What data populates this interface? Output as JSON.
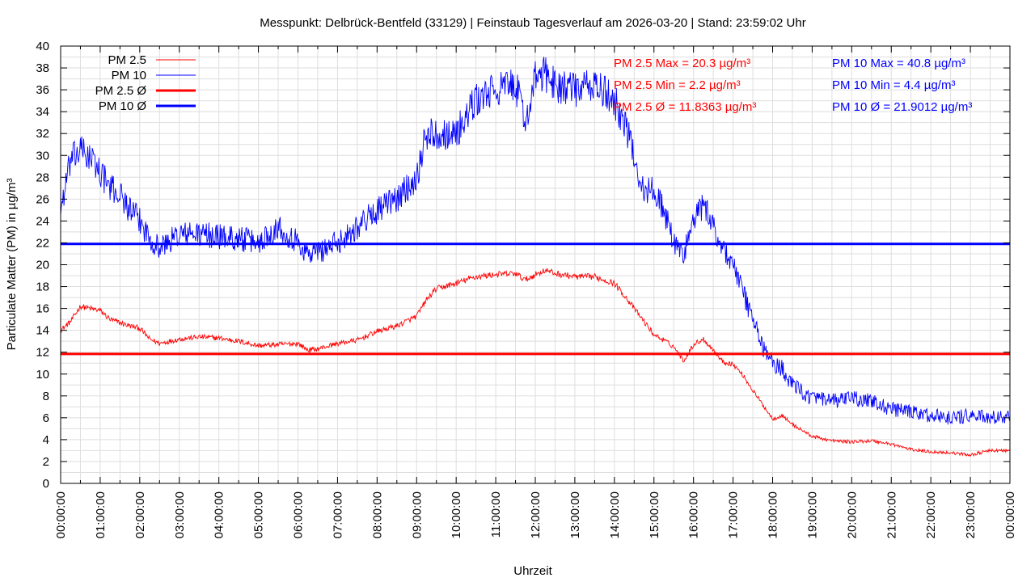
{
  "colors": {
    "pm25": "#ff0000",
    "pm10": "#0000ff",
    "grid": "#dedede",
    "axis": "#000000"
  },
  "chart_data": {
    "type": "line",
    "title": "Messpunkt: Delbrück-Bentfeld (33129) | Feinstaub Tagesverlauf am 2026-03-20 | Stand: 23:59:02 Uhr",
    "xlabel": "Uhrzeit",
    "ylabel": "Particulate Matter (PM) in µg/m³",
    "ylim": [
      0,
      40
    ],
    "xlim_hours": [
      0,
      24
    ],
    "y_ticks": [
      "0",
      "2",
      "4",
      "6",
      "8",
      "10",
      "12",
      "14",
      "16",
      "18",
      "20",
      "22",
      "24",
      "26",
      "28",
      "30",
      "32",
      "34",
      "36",
      "38",
      "40"
    ],
    "x_ticks": [
      "00:00:00",
      "01:00:00",
      "02:00:00",
      "03:00:00",
      "04:00:00",
      "05:00:00",
      "06:00:00",
      "07:00:00",
      "08:00:00",
      "09:00:00",
      "10:00:00",
      "11:00:00",
      "12:00:00",
      "13:00:00",
      "14:00:00",
      "15:00:00",
      "16:00:00",
      "17:00:00",
      "18:00:00",
      "19:00:00",
      "20:00:00",
      "21:00:00",
      "22:00:00",
      "23:00:00",
      "00:00:00"
    ],
    "grid": true,
    "legend_position": "top-left",
    "legend": [
      {
        "label": "PM 2.5",
        "series": "pm25",
        "style": "thin"
      },
      {
        "label": "PM 10",
        "series": "pm10",
        "style": "thin"
      },
      {
        "label": "PM 2.5 Ø",
        "series": "pm25",
        "style": "thick"
      },
      {
        "label": "PM 10 Ø",
        "series": "pm10",
        "style": "thick"
      }
    ],
    "series": [
      {
        "name": "PM 2.5",
        "color": "#ff0000",
        "x": [
          0,
          0.25,
          0.5,
          0.75,
          1,
          1.25,
          1.5,
          1.75,
          2,
          2.25,
          2.5,
          3,
          3.5,
          4,
          4.5,
          5,
          5.5,
          6,
          6.25,
          6.5,
          7,
          7.5,
          8,
          8.5,
          9,
          9.25,
          9.5,
          10,
          10.5,
          11,
          11.5,
          11.75,
          12,
          12.25,
          12.5,
          13,
          13.5,
          14,
          14.25,
          14.5,
          14.75,
          15,
          15.25,
          15.5,
          15.75,
          16,
          16.25,
          16.5,
          16.75,
          17,
          17.25,
          17.5,
          17.75,
          18,
          18.25,
          18.5,
          19,
          19.5,
          20,
          20.5,
          21,
          21.5,
          22,
          22.5,
          23,
          23.5,
          24
        ],
        "y": [
          14,
          14.8,
          16.2,
          16,
          15.8,
          15,
          14.7,
          14.4,
          14.2,
          13.2,
          12.8,
          13.2,
          13.4,
          13.3,
          13,
          12.6,
          12.7,
          12.8,
          12.2,
          12.3,
          12.8,
          13.1,
          13.9,
          14.4,
          15.3,
          16.8,
          17.8,
          18.3,
          18.9,
          19.1,
          19.2,
          18.6,
          19.1,
          19.5,
          19.2,
          18.9,
          18.9,
          18.3,
          17.2,
          16,
          14.8,
          13.6,
          13.1,
          12.5,
          11.2,
          12.7,
          13.2,
          12.2,
          11.1,
          10.9,
          9.9,
          8.5,
          7.2,
          5.9,
          6.2,
          5.4,
          4.3,
          3.9,
          3.8,
          3.9,
          3.6,
          3.1,
          2.9,
          2.8,
          2.6,
          3,
          3
        ]
      },
      {
        "name": "PM 10",
        "color": "#0000ff",
        "x": [
          0,
          0.25,
          0.5,
          0.75,
          1,
          1.25,
          1.5,
          1.75,
          2,
          2.25,
          2.5,
          3,
          3.5,
          4,
          4.5,
          5,
          5.5,
          6,
          6.25,
          6.5,
          7,
          7.5,
          8,
          8.5,
          9,
          9.25,
          9.5,
          10,
          10.5,
          11,
          11.5,
          11.75,
          12,
          12.25,
          12.5,
          13,
          13.5,
          14,
          14.25,
          14.5,
          14.75,
          15,
          15.25,
          15.5,
          15.75,
          16,
          16.25,
          16.5,
          16.75,
          17,
          17.25,
          17.5,
          17.75,
          18,
          18.25,
          18.5,
          19,
          19.5,
          20,
          20.5,
          21,
          21.5,
          22,
          22.5,
          23,
          23.5,
          24
        ],
        "y": [
          25,
          29.5,
          30.5,
          29.8,
          28.5,
          27,
          26.5,
          25,
          24,
          22.5,
          21.5,
          22.8,
          22.8,
          22.6,
          22.4,
          22,
          23.5,
          22,
          21,
          21.2,
          22,
          23.5,
          25,
          26,
          28,
          32,
          32,
          32,
          35,
          36,
          36.5,
          33,
          37,
          37.5,
          36.5,
          36,
          36.4,
          35,
          33,
          30,
          26.5,
          27,
          25,
          22,
          21,
          24,
          25.5,
          23.5,
          21.5,
          20,
          17.5,
          15,
          12.5,
          11,
          10.5,
          9,
          7.8,
          7.5,
          7.8,
          7.5,
          6.8,
          6.5,
          6.2,
          6,
          6.2,
          6,
          6
        ]
      }
    ],
    "averages": [
      {
        "name": "PM 2.5 Ø",
        "value": 11.8363,
        "color": "#ff0000"
      },
      {
        "name": "PM 10 Ø",
        "value": 21.9012,
        "color": "#0000ff"
      }
    ],
    "stats": {
      "pm25": [
        "PM 2.5 Max = 20.3 µg/m³",
        "PM 2.5 Min = 2.2 µg/m³",
        "PM 2.5 Ø = 11.8363 µg/m³"
      ],
      "pm10": [
        "PM 10 Max = 40.8 µg/m³",
        "PM 10 Min = 4.4 µg/m³",
        "PM 10 Ø = 21.9012 µg/m³"
      ]
    }
  }
}
